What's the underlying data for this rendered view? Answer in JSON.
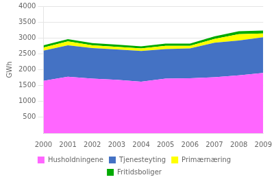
{
  "chart_data": {
    "type": "area",
    "stacked": true,
    "ylabel": "GWh",
    "x": [
      2000,
      2001,
      2002,
      2003,
      2004,
      2005,
      2006,
      2007,
      2008,
      2009
    ],
    "xlim": [
      2000,
      2009
    ],
    "xticks": [
      2000,
      2001,
      2002,
      2003,
      2004,
      2005,
      2006,
      2007,
      2008,
      2009
    ],
    "ylim": [
      0,
      4000
    ],
    "yticks": [
      500,
      1000,
      1500,
      2000,
      2500,
      3000,
      3500,
      4000
    ],
    "grid": true,
    "legend": "bottom",
    "series": [
      {
        "name": "Husholdningene",
        "color": "#FF66FF",
        "values": [
          1650,
          1780,
          1720,
          1680,
          1620,
          1720,
          1730,
          1760,
          1820,
          1900
        ]
      },
      {
        "name": "Tjenesteyting",
        "color": "#4472C4",
        "values": [
          950,
          990,
          960,
          960,
          970,
          930,
          940,
          1090,
          1100,
          1120
        ]
      },
      {
        "name": "Primærnæring",
        "color": "#FFFF00",
        "values": [
          100,
          120,
          90,
          80,
          80,
          100,
          80,
          120,
          200,
          120
        ]
      },
      {
        "name": "Fritidsboliger",
        "color": "#00AA00",
        "values": [
          70,
          70,
          70,
          70,
          65,
          70,
          70,
          80,
          90,
          90
        ]
      }
    ]
  }
}
